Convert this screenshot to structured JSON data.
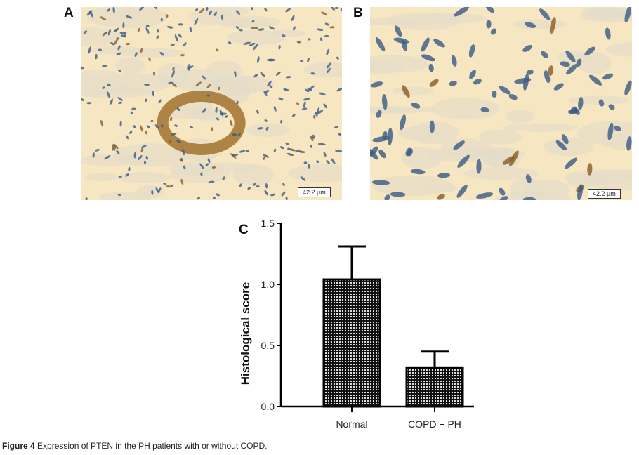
{
  "panels": [
    {
      "letter": "A",
      "scale_label": "42.2 μm"
    },
    {
      "letter": "B",
      "scale_label": "42.2 μm"
    }
  ],
  "chart_data": {
    "type": "bar",
    "panel_letter": "C",
    "categories": [
      "Normal",
      "COPD + PH"
    ],
    "values": [
      1.04,
      0.32
    ],
    "error_upper": [
      1.31,
      0.45
    ],
    "ylabel": "Histological score",
    "xlabel": "",
    "ylim": [
      0,
      1.5
    ],
    "yticks": [
      "0.0",
      "0.5",
      "1.0",
      "1.5"
    ],
    "bar_fill": "crosshatch pattern, black",
    "grid": false
  },
  "caption": {
    "label": "Figure 4",
    "text": " Expression of PTEN in the PH patients with or without COPD."
  }
}
